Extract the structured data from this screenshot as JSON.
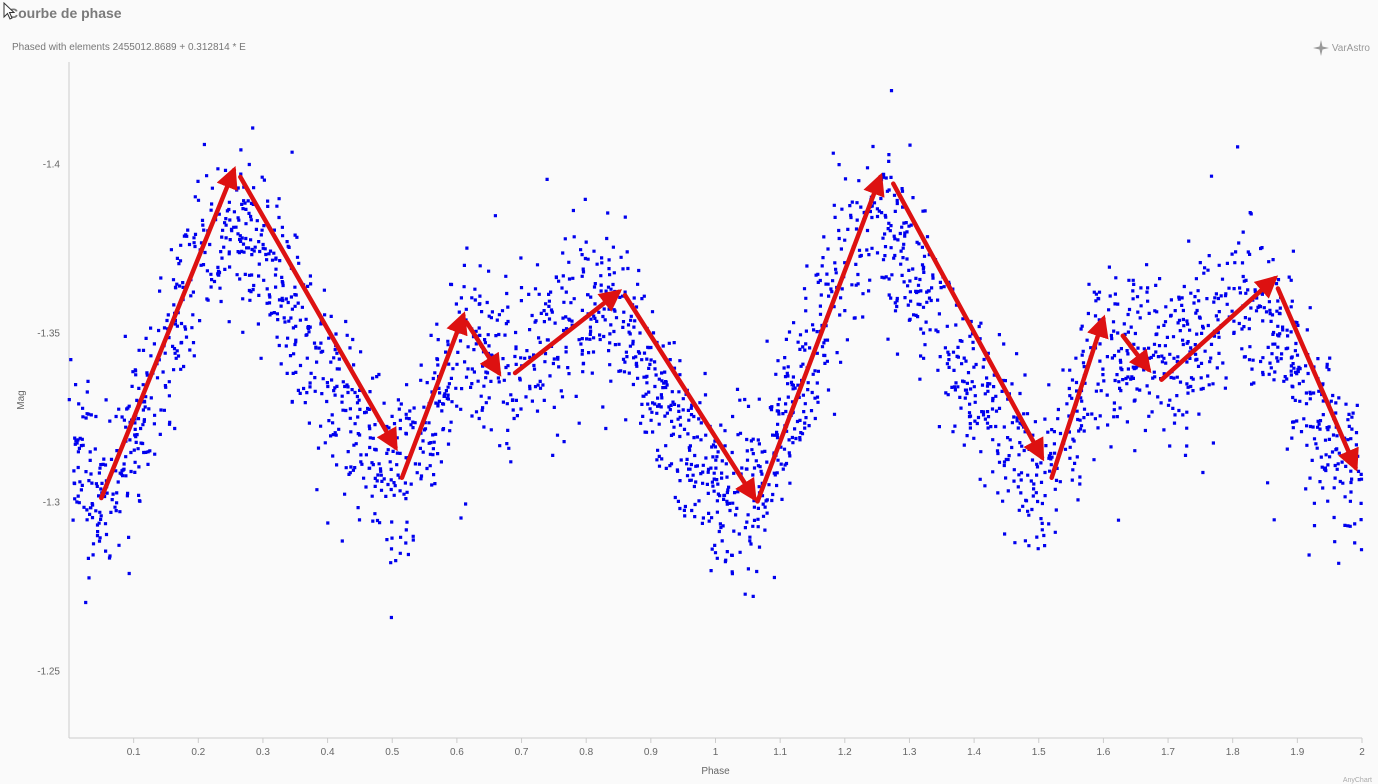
{
  "title": "Courbe de phase",
  "subtitle": "Phased with elements 2455012.8689 + 0.312814 * E",
  "brand": {
    "label": "VarAstro",
    "icon": "compass-star-icon"
  },
  "credit": "AnyChart",
  "colors": {
    "points": "#0000ee",
    "arrows": "#dd1111",
    "axis": "#cccccc",
    "background": "#fafafa"
  },
  "chart_data": {
    "type": "scatter",
    "xlabel": "Phase",
    "ylabel": "Mag",
    "xlim": [
      0.0,
      2.0
    ],
    "ylim": [
      -1.43,
      -1.23
    ],
    "y_inverted": true,
    "x_ticks": [
      "0.1",
      "0.2",
      "0.3",
      "0.4",
      "0.5",
      "0.6",
      "0.7",
      "0.8",
      "0.9",
      "1",
      "1.1",
      "1.2",
      "1.3",
      "1.4",
      "1.5",
      "1.6",
      "1.7",
      "1.8",
      "1.9",
      "2"
    ],
    "y_ticks": [
      "-1.4",
      "-1.35",
      "-1.3",
      "-1.25"
    ],
    "grid": false,
    "legend": "none",
    "light_curve_trend": [
      {
        "phase": 0.0,
        "mag": -1.318
      },
      {
        "phase": 0.05,
        "mag": -1.302
      },
      {
        "phase": 0.1,
        "mag": -1.318
      },
      {
        "phase": 0.15,
        "mag": -1.345
      },
      {
        "phase": 0.2,
        "mag": -1.372
      },
      {
        "phase": 0.25,
        "mag": -1.385
      },
      {
        "phase": 0.3,
        "mag": -1.372
      },
      {
        "phase": 0.35,
        "mag": -1.352
      },
      {
        "phase": 0.4,
        "mag": -1.335
      },
      {
        "phase": 0.45,
        "mag": -1.32
      },
      {
        "phase": 0.5,
        "mag": -1.305
      },
      {
        "phase": 0.55,
        "mag": -1.318
      },
      {
        "phase": 0.6,
        "mag": -1.345
      },
      {
        "phase": 0.65,
        "mag": -1.345
      },
      {
        "phase": 0.7,
        "mag": -1.34
      },
      {
        "phase": 0.75,
        "mag": -1.348
      },
      {
        "phase": 0.8,
        "mag": -1.358
      },
      {
        "phase": 0.85,
        "mag": -1.355
      },
      {
        "phase": 0.9,
        "mag": -1.335
      },
      {
        "phase": 0.95,
        "mag": -1.318
      },
      {
        "phase": 1.0,
        "mag": -1.305
      },
      {
        "phase": 1.05,
        "mag": -1.302
      },
      {
        "phase": 1.1,
        "mag": -1.318
      },
      {
        "phase": 1.15,
        "mag": -1.345
      },
      {
        "phase": 1.2,
        "mag": -1.372
      },
      {
        "phase": 1.25,
        "mag": -1.385
      },
      {
        "phase": 1.3,
        "mag": -1.372
      },
      {
        "phase": 1.35,
        "mag": -1.352
      },
      {
        "phase": 1.4,
        "mag": -1.335
      },
      {
        "phase": 1.45,
        "mag": -1.32
      },
      {
        "phase": 1.5,
        "mag": -1.305
      },
      {
        "phase": 1.55,
        "mag": -1.318
      },
      {
        "phase": 1.6,
        "mag": -1.345
      },
      {
        "phase": 1.65,
        "mag": -1.345
      },
      {
        "phase": 1.7,
        "mag": -1.34
      },
      {
        "phase": 1.75,
        "mag": -1.348
      },
      {
        "phase": 1.8,
        "mag": -1.358
      },
      {
        "phase": 1.85,
        "mag": -1.355
      },
      {
        "phase": 1.9,
        "mag": -1.335
      },
      {
        "phase": 1.95,
        "mag": -1.318
      },
      {
        "phase": 2.0,
        "mag": -1.305
      }
    ],
    "scatter_spread_mag": 0.022,
    "annotations_arrows": [
      {
        "from": [
          0.05,
          -1.301
        ],
        "to": [
          0.255,
          -1.398
        ]
      },
      {
        "from": [
          0.265,
          -1.396
        ],
        "to": [
          0.505,
          -1.316
        ]
      },
      {
        "from": [
          0.515,
          -1.307
        ],
        "to": [
          0.61,
          -1.355
        ]
      },
      {
        "from": [
          0.615,
          -1.353
        ],
        "to": [
          0.665,
          -1.338
        ]
      },
      {
        "from": [
          0.69,
          -1.338
        ],
        "to": [
          0.85,
          -1.362
        ]
      },
      {
        "from": [
          0.86,
          -1.361
        ],
        "to": [
          1.06,
          -1.301
        ]
      },
      {
        "from": [
          1.065,
          -1.3
        ],
        "to": [
          1.255,
          -1.396
        ]
      },
      {
        "from": [
          1.275,
          -1.394
        ],
        "to": [
          1.505,
          -1.313
        ]
      },
      {
        "from": [
          1.52,
          -1.307
        ],
        "to": [
          1.6,
          -1.354
        ]
      },
      {
        "from": [
          1.63,
          -1.349
        ],
        "to": [
          1.67,
          -1.339
        ]
      },
      {
        "from": [
          1.69,
          -1.336
        ],
        "to": [
          1.865,
          -1.366
        ]
      },
      {
        "from": [
          1.87,
          -1.363
        ],
        "to": [
          1.99,
          -1.31
        ]
      }
    ]
  }
}
